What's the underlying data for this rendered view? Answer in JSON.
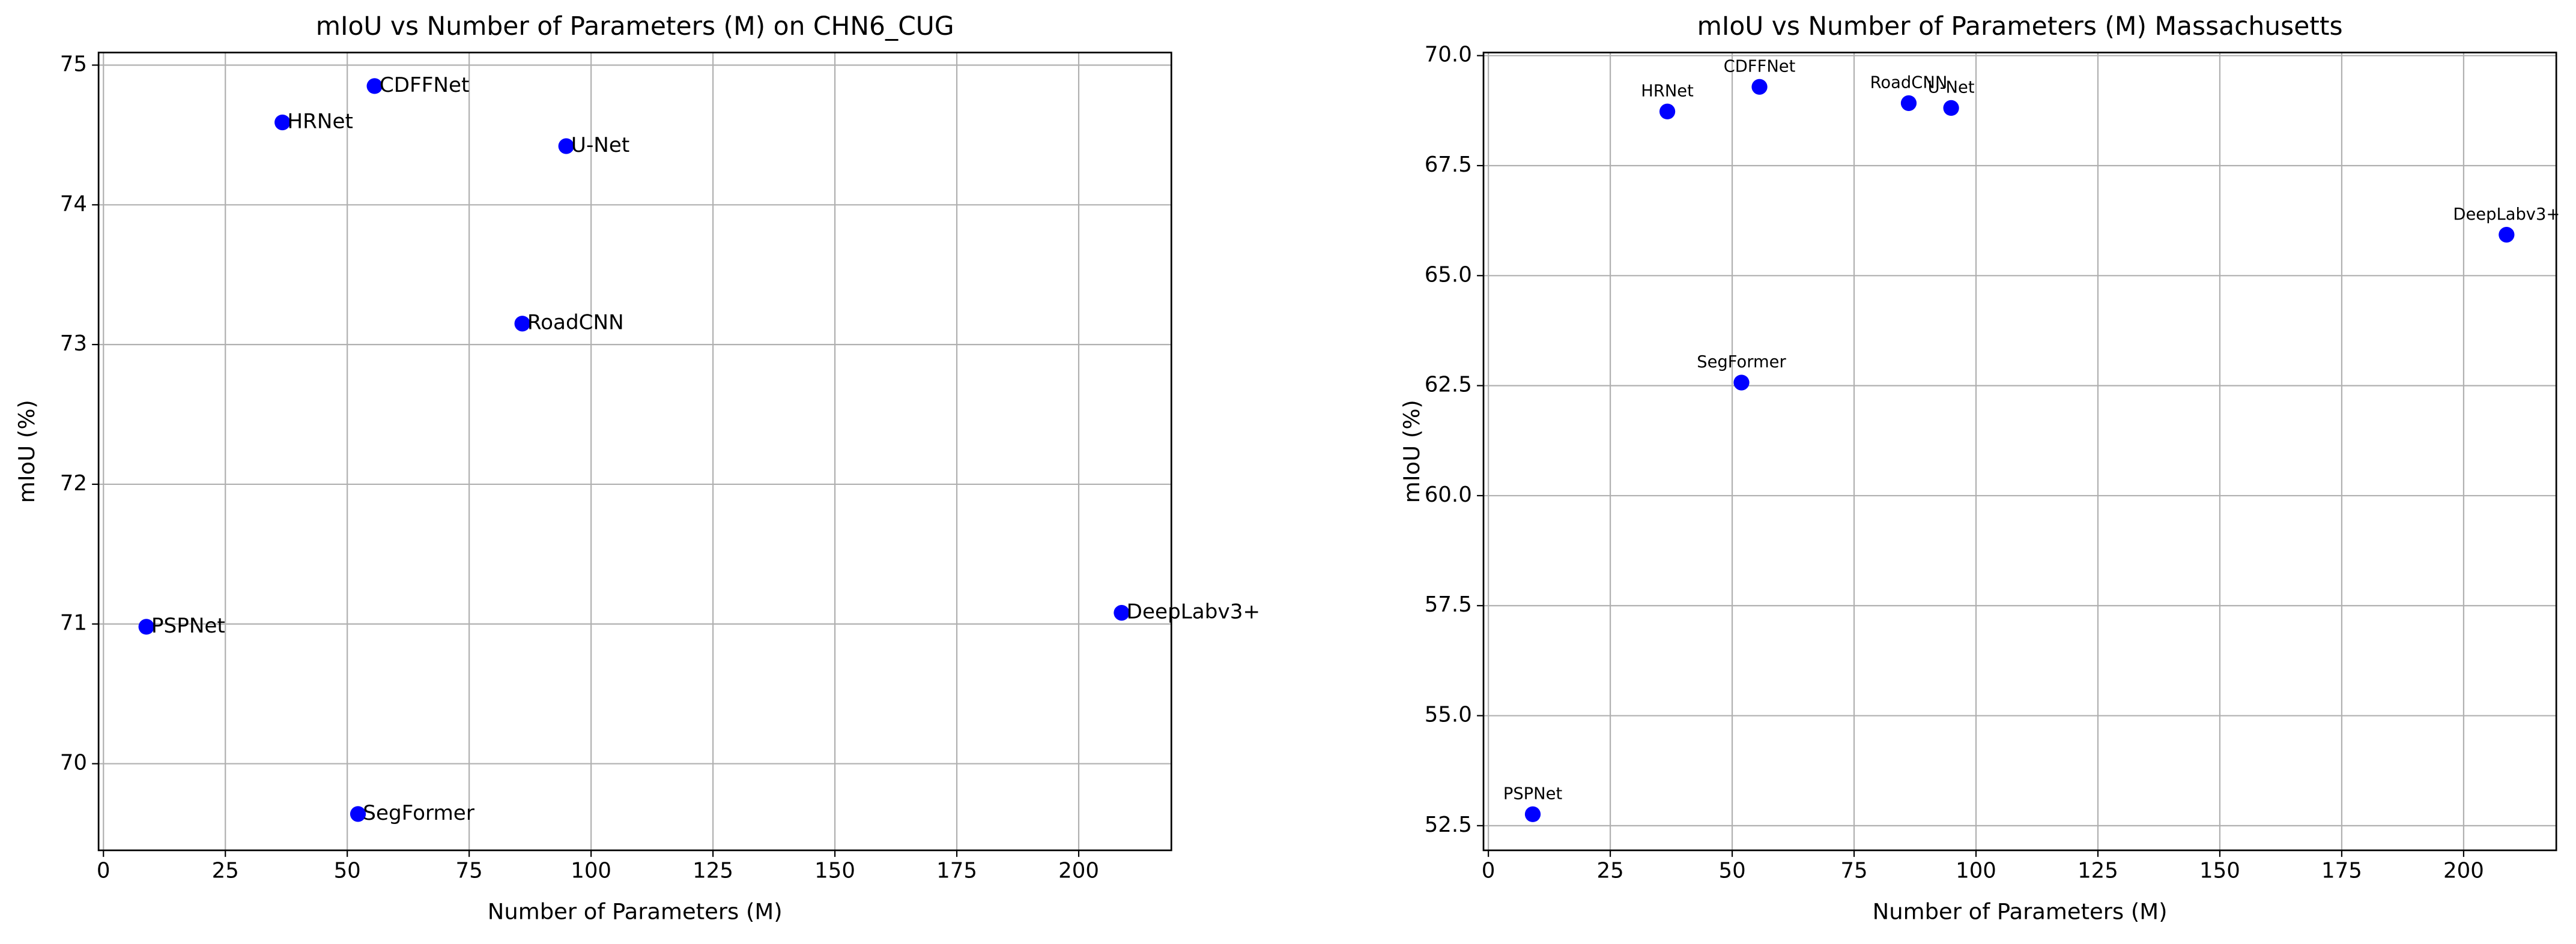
{
  "chart_data": [
    {
      "type": "scatter",
      "title": "mIoU vs Number of Parameters (M) on CHN6_CUG",
      "xlabel": "Number of Parameters (M)",
      "ylabel": "mIoU (%)",
      "labels": [
        "PSPNet",
        "HRNet",
        "CDFFNet",
        "U-Net",
        "RoadCNN",
        "SegFormer",
        "DeepLabv3+"
      ],
      "x": [
        8.8,
        36.7,
        55.6,
        94.9,
        85.9,
        52.2,
        208.8
      ],
      "y": [
        70.98,
        74.59,
        74.85,
        74.42,
        73.15,
        69.64,
        71.08
      ],
      "color": "#0000ff",
      "label_position": "right",
      "xlim": [
        -1,
        219
      ],
      "ylim": [
        69.38,
        75.09
      ],
      "xticks": [
        0,
        25,
        50,
        75,
        100,
        125,
        150,
        175,
        200
      ],
      "yticks": [
        70,
        71,
        72,
        73,
        74,
        75
      ],
      "grid": true
    },
    {
      "type": "scatter",
      "title": "mIoU vs Number of Parameters (M) Massachusetts",
      "xlabel": "Number of Parameters (M)",
      "ylabel": "mIoU (%)",
      "labels": [
        "PSPNet",
        "HRNet",
        "CDFFNet",
        "RoadCNN",
        "U-Net",
        "SegFormer",
        "DeepLabv3+"
      ],
      "x": [
        9.1,
        36.7,
        55.6,
        86.2,
        94.9,
        51.9,
        208.8
      ],
      "y": [
        52.76,
        68.73,
        69.29,
        68.92,
        68.81,
        62.57,
        65.93
      ],
      "color": "#0000ff",
      "label_position": "above",
      "xlim": [
        -1,
        219
      ],
      "ylim": [
        51.94,
        70.07
      ],
      "xticks": [
        0,
        25,
        50,
        75,
        100,
        125,
        150,
        175,
        200
      ],
      "yticks": [
        52.5,
        {
          "value": 55,
          "label": "55.0"
        },
        57.5,
        {
          "value": 60,
          "label": "60.0"
        },
        62.5,
        {
          "value": 65,
          "label": "65.0"
        },
        67.5,
        {
          "value": 70,
          "label": "70.0"
        }
      ],
      "grid": true
    }
  ]
}
